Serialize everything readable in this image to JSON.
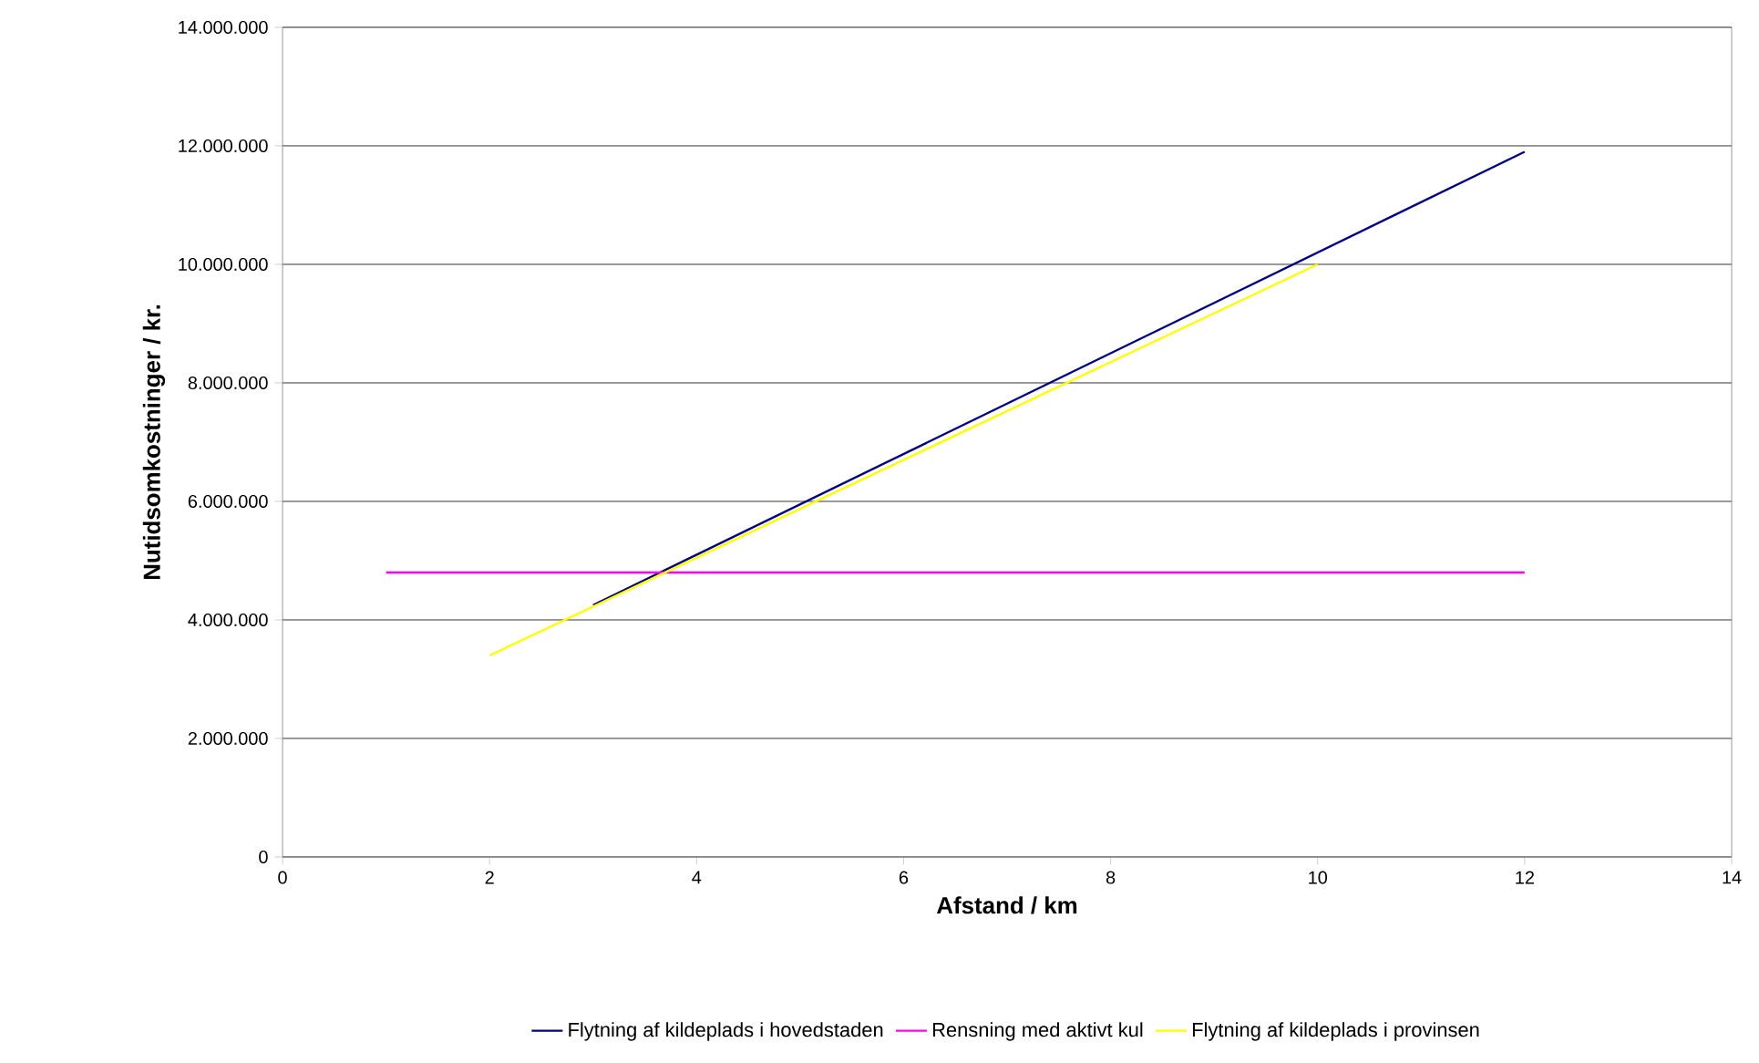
{
  "chart_data": {
    "type": "line",
    "xlabel": "Afstand / km",
    "ylabel": "Nutidsomkostninger / kr.",
    "series": [
      {
        "name": "Flytning af kildeplads i hovedstaden",
        "color": "#000080",
        "x": [
          3,
          12
        ],
        "values": [
          4250000,
          11900000
        ]
      },
      {
        "name": "Rensning med aktivt kul",
        "color": "#ff00ff",
        "x": [
          1,
          12
        ],
        "values": [
          4800000,
          4800000
        ]
      },
      {
        "name": "Flytning af kildeplads i provinsen",
        "color": "#ffff00",
        "x": [
          2,
          10
        ],
        "values": [
          3400000,
          10000000
        ]
      }
    ],
    "xlim": [
      0,
      14
    ],
    "xticks": [
      0,
      2,
      4,
      6,
      8,
      10,
      12,
      14
    ],
    "ylim": [
      0,
      14000000
    ],
    "yticks": [
      {
        "value": 0,
        "label": "0"
      },
      {
        "value": 2000000,
        "label": "2.000.000"
      },
      {
        "value": 4000000,
        "label": "4.000.000"
      },
      {
        "value": 6000000,
        "label": "6.000.000"
      },
      {
        "value": 8000000,
        "label": "8.000.000"
      },
      {
        "value": 10000000,
        "label": "10.000.000"
      },
      {
        "value": 12000000,
        "label": "12.000.000"
      },
      {
        "value": 14000000,
        "label": "14.000.000"
      }
    ],
    "grid": "y",
    "legend": "bottom",
    "marker": "none",
    "line_style": "solid"
  }
}
